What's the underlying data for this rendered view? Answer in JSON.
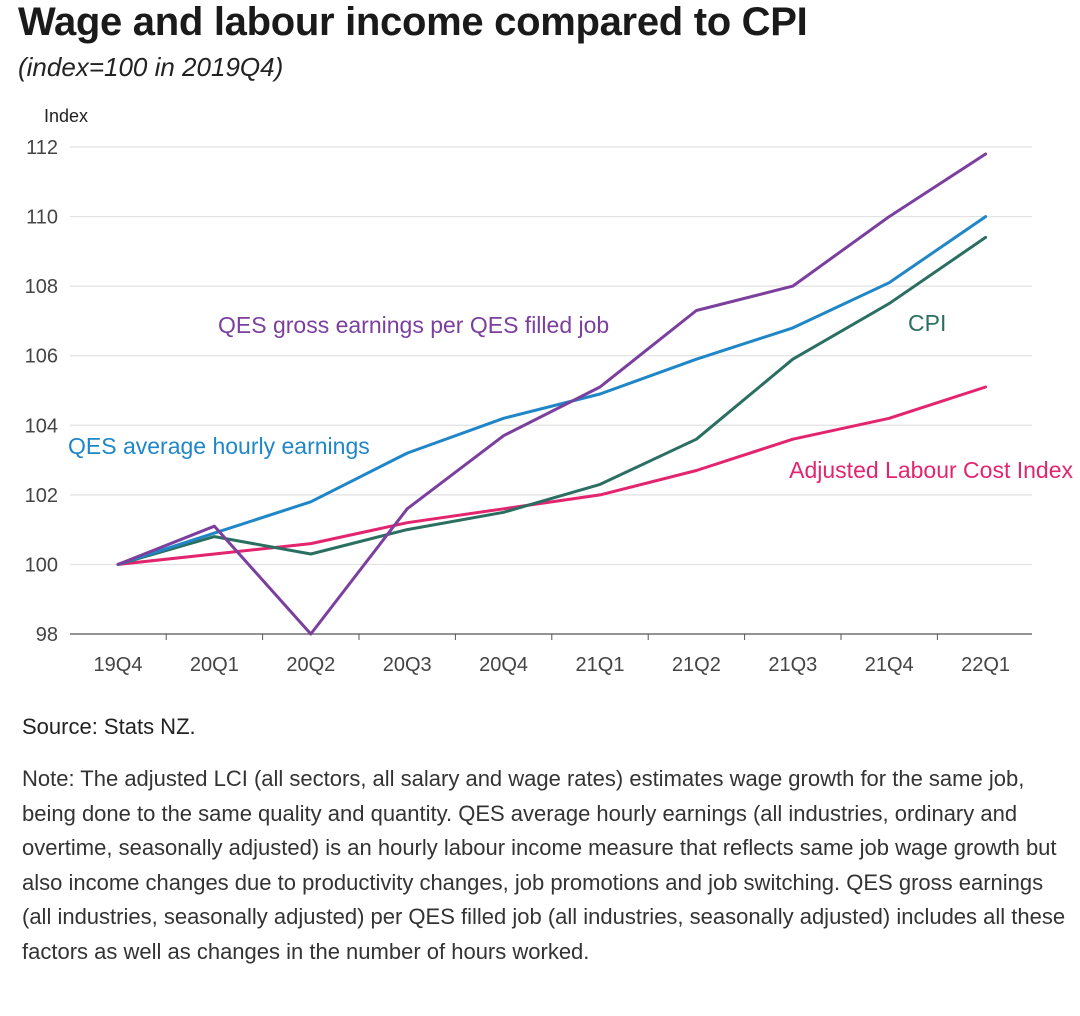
{
  "title": "Wage and labour income compared to CPI",
  "subtitle": "(index=100 in 2019Q4)",
  "source": "Source: Stats NZ.",
  "note": "Note: The adjusted LCI (all sectors, all salary and wage rates) estimates wage growth for the same job, being done to the same quality and quantity. QES average hourly earnings (all industries, ordinary and overtime, seasonally adjusted) is an hourly labour income measure that reflects same job wage growth but also income changes due to productivity changes, job promotions and job switching. QES gross earnings (all industries, seasonally adjusted) per QES filled job (all industries, seasonally adjusted) includes all these factors as well as changes in the number of hours worked.",
  "chart_data": {
    "type": "line",
    "ylabel": "Index",
    "xlabel": "",
    "ylim": [
      98,
      112
    ],
    "yticks": [
      98,
      100,
      102,
      104,
      106,
      108,
      110,
      112
    ],
    "grid": true,
    "categories": [
      "19Q4",
      "20Q1",
      "20Q2",
      "20Q3",
      "20Q4",
      "21Q1",
      "21Q2",
      "21Q3",
      "21Q4",
      "22Q1"
    ],
    "series": [
      {
        "name": "QES gross earnings per QES filled job",
        "color": "#7b3f9e",
        "values": [
          100.0,
          101.1,
          98.0,
          101.6,
          103.7,
          105.1,
          107.3,
          108.0,
          110.0,
          111.8
        ]
      },
      {
        "name": "QES average hourly earnings",
        "color": "#1f86c8",
        "values": [
          100.0,
          100.9,
          101.8,
          103.2,
          104.2,
          104.9,
          105.9,
          106.8,
          108.1,
          110.0
        ]
      },
      {
        "name": "CPI",
        "color": "#2a6f62",
        "values": [
          100.0,
          100.8,
          100.3,
          101.0,
          101.5,
          102.3,
          103.6,
          105.9,
          107.5,
          109.4
        ]
      },
      {
        "name": "Adjusted Labour Cost Index",
        "color": "#e3246f",
        "values": [
          100.0,
          100.3,
          100.6,
          101.2,
          101.6,
          102.0,
          102.7,
          103.6,
          104.2,
          105.1
        ]
      }
    ]
  }
}
